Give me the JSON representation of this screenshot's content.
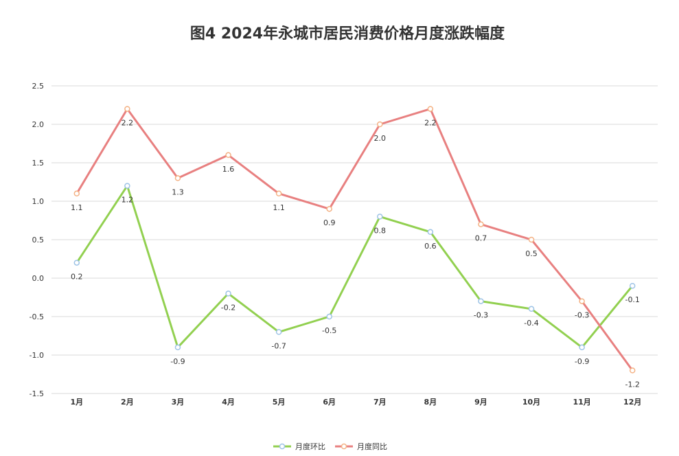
{
  "chart_data": {
    "type": "line",
    "title": "图4  2024年永城市居民消费价格月度涨跌幅度",
    "categories": [
      "1月",
      "2月",
      "3月",
      "4月",
      "5月",
      "6月",
      "7月",
      "8月",
      "9月",
      "10月",
      "11月",
      "12月"
    ],
    "series": [
      {
        "name": "月度环比",
        "color": "#92d050",
        "marker_color": "#9dc3e6",
        "values": [
          0.2,
          1.2,
          -0.9,
          -0.2,
          -0.7,
          -0.5,
          0.8,
          0.6,
          -0.3,
          -0.4,
          -0.9,
          -0.1
        ],
        "labels": [
          "0.2",
          "1.2",
          "-0.9",
          "-0.2",
          "-0.7",
          "-0.5",
          "0.8",
          "0.6",
          "-0.3",
          "-0.4",
          "-0.9",
          "-0.1"
        ]
      },
      {
        "name": "月度同比",
        "color": "#e88080",
        "marker_color": "#f4b183",
        "values": [
          1.1,
          2.2,
          1.3,
          1.6,
          1.1,
          0.9,
          2.0,
          2.2,
          0.7,
          0.5,
          -0.3,
          -1.2
        ],
        "labels": [
          "1.1",
          "2.2",
          "1.3",
          "1.6",
          "1.1",
          "0.9",
          "2.0",
          "2.2",
          "0.7",
          "0.5",
          "-0.3",
          "-1.2"
        ]
      }
    ],
    "ylim": [
      -1.5,
      2.5
    ],
    "yticks": [
      2.5,
      2.0,
      1.5,
      1.0,
      0.5,
      0.0,
      -0.5,
      -1.0,
      -1.5
    ],
    "ytick_labels": [
      "2.5",
      "2.0",
      "1.5",
      "1.0",
      "0.5",
      "0.0",
      "-0.5",
      "-1.0",
      "-1.5"
    ],
    "grid": true,
    "legend_position": "bottom"
  }
}
